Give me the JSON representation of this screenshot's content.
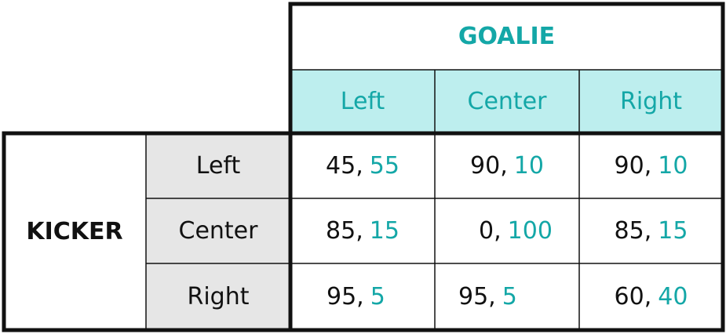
{
  "colors": {
    "goalie_accent": "#14a7a7",
    "goalie_header_bg": "#bdeeee",
    "kicker_header_bg": "#e6e6e6",
    "text": "#111111",
    "border": "#111111"
  },
  "goalie": {
    "title": "GOALIE",
    "columns": [
      "Left",
      "Center",
      "Right"
    ]
  },
  "kicker": {
    "title": "KICKER",
    "rows": [
      "Left",
      "Center",
      "Right"
    ]
  },
  "payoffs": [
    [
      {
        "k": "45,",
        "g": "55"
      },
      {
        "k": "90,",
        "g": "10"
      },
      {
        "k": "90,",
        "g": "10"
      }
    ],
    [
      {
        "k": "85,",
        "g": "15"
      },
      {
        "k": "0,",
        "g": "100"
      },
      {
        "k": "85,",
        "g": "15"
      }
    ],
    [
      {
        "k": "95,",
        "g": "5"
      },
      {
        "k": "95,",
        "g": "5"
      },
      {
        "k": "60,",
        "g": "40"
      }
    ]
  ]
}
